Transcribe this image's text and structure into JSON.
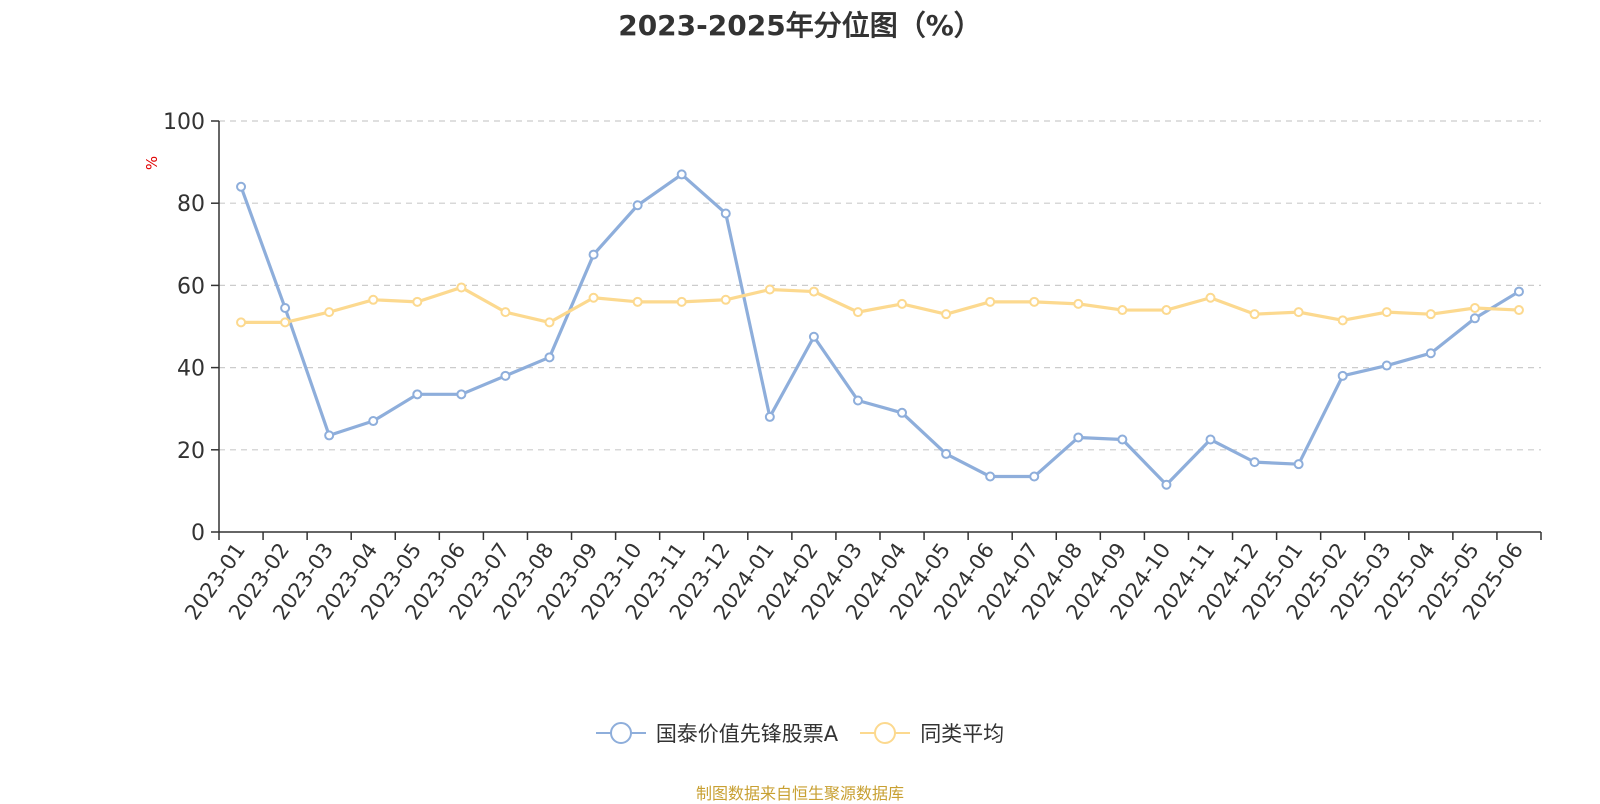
{
  "chart_data": {
    "type": "line",
    "title": "2023-2025年分位图（%）",
    "ylabel": "%",
    "xlabel": "",
    "ylim": [
      0,
      100
    ],
    "yticks": [
      0,
      20,
      40,
      60,
      80,
      100
    ],
    "grid": true,
    "legend_position": "bottom",
    "categories": [
      "2023-01",
      "2023-02",
      "2023-03",
      "2023-04",
      "2023-05",
      "2023-06",
      "2023-07",
      "2023-08",
      "2023-09",
      "2023-10",
      "2023-11",
      "2023-12",
      "2024-01",
      "2024-02",
      "2024-03",
      "2024-04",
      "2024-05",
      "2024-06",
      "2024-07",
      "2024-08",
      "2024-09",
      "2024-10",
      "2024-11",
      "2024-12",
      "2025-01",
      "2025-02",
      "2025-03",
      "2025-04",
      "2025-05",
      "2025-06"
    ],
    "series": [
      {
        "name": "国泰价值先锋股票A",
        "color": "#8eaedb",
        "values": [
          84,
          54.5,
          23.5,
          27,
          33.5,
          33.5,
          38,
          42.5,
          67.5,
          79.5,
          87,
          77.5,
          28,
          47.5,
          32,
          29,
          19,
          13.5,
          13.5,
          23,
          22.5,
          11.5,
          22.5,
          17,
          16.5,
          38,
          40.5,
          43.5,
          52,
          58.5
        ]
      },
      {
        "name": "同类平均",
        "color": "#fcd98f",
        "values": [
          51,
          51,
          53.5,
          56.5,
          56,
          59.5,
          53.5,
          51,
          57,
          56,
          56,
          56.5,
          59,
          58.5,
          53.5,
          55.5,
          53,
          56,
          56,
          55.5,
          54,
          54,
          57,
          53,
          53.5,
          51.5,
          53.5,
          53,
          54.5,
          54
        ]
      }
    ]
  },
  "source_note": "制图数据来自恒生聚源数据库",
  "colors": {
    "axis": "#333333",
    "grid": "#cccccc",
    "ylabel": "#e00000"
  }
}
